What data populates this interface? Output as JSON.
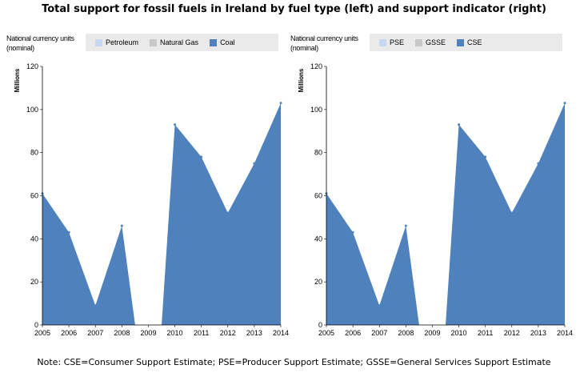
{
  "title": "Total support for fossil fuels in Ireland by fuel type (left) and support indicator (right)",
  "footnote": "Note: CSE=Consumer Support Estimate; PSE=Producer Support Estimate; GSSE=General Services Support Estimate",
  "colors": {
    "light_blue": "#c6d9f0",
    "grey": "#c8c8c8",
    "blue": "#4f81bd",
    "legend_bg": "#eaeaea"
  },
  "chart_data": [
    {
      "type": "area",
      "unit_label": "National currency units (nominal)",
      "ylabel": "Millions",
      "ylim": [
        0,
        120
      ],
      "yticks": [
        0,
        20,
        40,
        60,
        80,
        100,
        120
      ],
      "x": [
        "2005",
        "2006",
        "2007",
        "2008",
        "2009",
        "2010",
        "2011",
        "2012",
        "2013",
        "2014"
      ],
      "series": [
        {
          "name": "Petroleum",
          "color": "#c6d9f0",
          "values": [
            0,
            0,
            0,
            0,
            0,
            0,
            0,
            0,
            0,
            0
          ]
        },
        {
          "name": "Natural Gas",
          "color": "#c8c8c8",
          "values": [
            0,
            0,
            0,
            0,
            0,
            0,
            0,
            0,
            0,
            0
          ]
        },
        {
          "name": "Coal",
          "color": "#4f81bd",
          "values": [
            61,
            43,
            9,
            46,
            null,
            93,
            78,
            52,
            75,
            103
          ]
        }
      ]
    },
    {
      "type": "area",
      "unit_label": "National currency units (nominal)",
      "ylabel": "Millions",
      "ylim": [
        0,
        120
      ],
      "yticks": [
        0,
        20,
        40,
        60,
        80,
        100,
        120
      ],
      "x": [
        "2005",
        "2006",
        "2007",
        "2008",
        "2009",
        "2010",
        "2011",
        "2012",
        "2013",
        "2014"
      ],
      "series": [
        {
          "name": "PSE",
          "color": "#c6d9f0",
          "values": [
            0,
            0,
            0,
            0,
            0,
            0,
            0,
            0,
            0,
            0
          ]
        },
        {
          "name": "GSSE",
          "color": "#c8c8c8",
          "values": [
            0,
            0,
            0,
            0,
            0,
            0,
            0,
            0,
            0,
            0
          ]
        },
        {
          "name": "CSE",
          "color": "#4f81bd",
          "values": [
            61,
            43,
            9,
            46,
            null,
            93,
            78,
            52,
            75,
            103
          ]
        }
      ]
    }
  ]
}
